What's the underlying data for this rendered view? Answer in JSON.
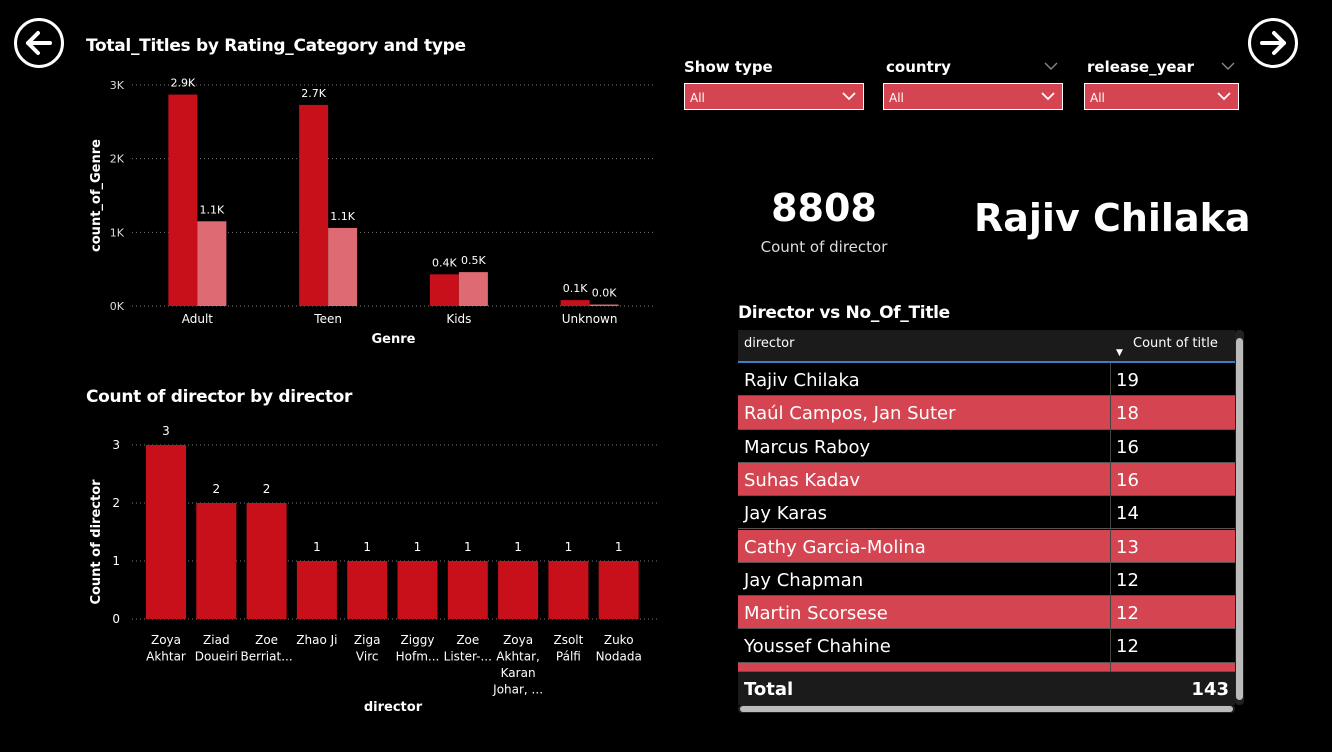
{
  "nav": {
    "back_icon": "arrow-left-icon",
    "forward_icon": "arrow-right-icon"
  },
  "colors": {
    "primary_red": "#c8101a",
    "light_red": "#de6b74",
    "row_highlight": "#d44551",
    "background": "#000000"
  },
  "chart1": {
    "title": "Total_Titles by Rating_Category and type"
  },
  "chart2": {
    "title": "Count of director by director"
  },
  "chart_data": [
    {
      "type": "bar",
      "title": "Total_Titles by Rating_Category and type",
      "xlabel": "Genre",
      "ylabel": "count_of_Genre",
      "categories": [
        "Adult",
        "Teen",
        "Kids",
        "Unknown"
      ],
      "yticks": [
        "0K",
        "1K",
        "2K",
        "3K"
      ],
      "ylim": [
        0,
        3000
      ],
      "series": [
        {
          "values": [
            2870,
            2730,
            430,
            80
          ],
          "labels": [
            "2.9K",
            "2.7K",
            "0.4K",
            "0.1K"
          ],
          "color": "#c8101a"
        },
        {
          "values": [
            1150,
            1060,
            460,
            20
          ],
          "labels": [
            "1.1K",
            "1.1K",
            "0.5K",
            "0.0K"
          ],
          "color": "#de6b74"
        }
      ],
      "grid": true
    },
    {
      "type": "bar",
      "title": "Count of director by director",
      "xlabel": "director",
      "ylabel": "Count of director",
      "categories": [
        [
          "Zoya",
          "Akhtar"
        ],
        [
          "Ziad",
          "Doueiri"
        ],
        [
          "Zoe",
          "Berriat..."
        ],
        [
          "Zhao Ji"
        ],
        [
          "Ziga",
          "Virc"
        ],
        [
          "Ziggy",
          "Hofm..."
        ],
        [
          "Zoe",
          "Lister-..."
        ],
        [
          "Zoya",
          "Akhtar,",
          "Karan",
          "Johar, ..."
        ],
        [
          "Zsolt",
          "Pálfi"
        ],
        [
          "Zuko",
          "Nodada"
        ]
      ],
      "values": [
        3,
        2,
        2,
        1,
        1,
        1,
        1,
        1,
        1,
        1
      ],
      "yticks": [
        "0",
        "1",
        "2",
        "3"
      ],
      "ylim": [
        0,
        3
      ],
      "color": "#c8101a",
      "grid": true
    }
  ],
  "slicers": [
    {
      "label": "Show type",
      "value": "All"
    },
    {
      "label": "country",
      "value": "All"
    },
    {
      "label": "release_year",
      "value": "All"
    }
  ],
  "kpi": {
    "count_value": "8808",
    "count_label": "Count of director",
    "top_director": "Rajiv Chilaka"
  },
  "table": {
    "title": "Director vs No_Of_Title",
    "col_director": "director",
    "col_count": "Count of title",
    "rows": [
      {
        "director": "Rajiv Chilaka",
        "count": "19"
      },
      {
        "director": "Raúl Campos, Jan Suter",
        "count": "18"
      },
      {
        "director": "Marcus Raboy",
        "count": "16"
      },
      {
        "director": "Suhas Kadav",
        "count": "16"
      },
      {
        "director": "Jay Karas",
        "count": "14"
      },
      {
        "director": "Cathy Garcia-Molina",
        "count": "13"
      },
      {
        "director": "Jay Chapman",
        "count": "12"
      },
      {
        "director": "Martin Scorsese",
        "count": "12"
      },
      {
        "director": "Youssef Chahine",
        "count": "12"
      }
    ],
    "total_label": "Total",
    "total_value": "143"
  }
}
